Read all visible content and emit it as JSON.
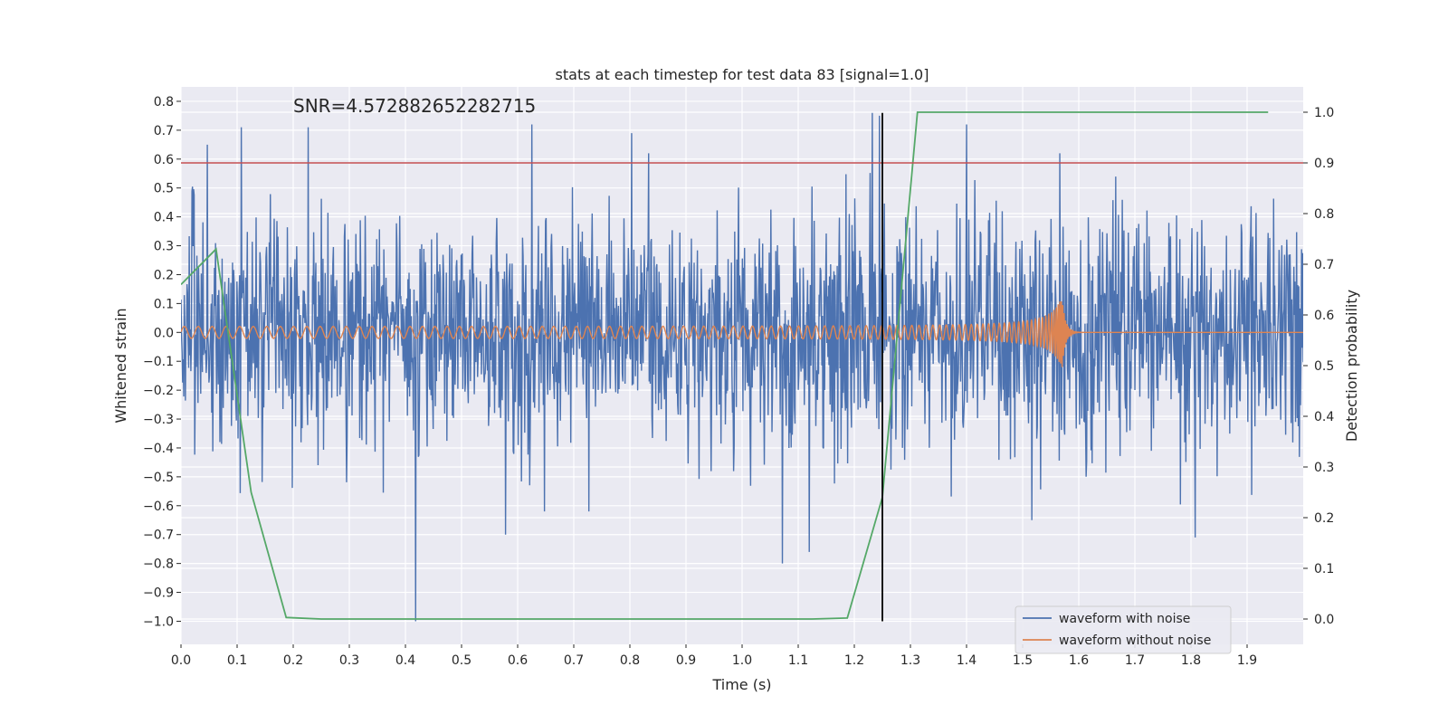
{
  "chart_data": {
    "type": "line",
    "title": "stats at each timestep for test data 83 [signal=1.0]",
    "xlabel": "Time (s)",
    "ylabel": "Whitened strain",
    "y2label": "Detection probability",
    "xlim": [
      0.0,
      2.0
    ],
    "ylim": [
      -1.08,
      0.85
    ],
    "y2lim": [
      -0.05,
      1.05
    ],
    "x_ticks": [
      0.0,
      0.1,
      0.2,
      0.3,
      0.4,
      0.5,
      0.6,
      0.7,
      0.8,
      0.9,
      1.0,
      1.1,
      1.2,
      1.3,
      1.4,
      1.5,
      1.6,
      1.7,
      1.8,
      1.9
    ],
    "x_tick_labels": [
      "0.0",
      "0.1",
      "0.2",
      "0.3",
      "0.4",
      "0.5",
      "0.6",
      "0.7",
      "0.8",
      "0.9",
      "1.0",
      "1.1",
      "1.2",
      "1.3",
      "1.4",
      "1.5",
      "1.6",
      "1.7",
      "1.8",
      "1.9"
    ],
    "y_ticks": [
      0.8,
      0.7,
      0.6,
      0.5,
      0.4,
      0.3,
      0.2,
      0.1,
      0.0,
      -0.1,
      -0.2,
      -0.3,
      -0.4,
      -0.5,
      -0.6,
      -0.7,
      -0.8,
      -0.9,
      -1.0
    ],
    "y_tick_labels": [
      "0.8",
      "0.7",
      "0.6",
      "0.5",
      "0.4",
      "0.3",
      "0.2",
      "0.1",
      "0.0",
      "−0.1",
      "−0.2",
      "−0.3",
      "−0.4",
      "−0.5",
      "−0.6",
      "−0.7",
      "−0.8",
      "−0.9",
      "−1.0"
    ],
    "y2_ticks": [
      1.0,
      0.9,
      0.8,
      0.7,
      0.6,
      0.5,
      0.4,
      0.3,
      0.2,
      0.1,
      0.0
    ],
    "y2_tick_labels": [
      "1.0",
      "0.9",
      "0.8",
      "0.7",
      "0.6",
      "0.5",
      "0.4",
      "0.3",
      "0.2",
      "0.1",
      "0.0"
    ],
    "annotation": "SNR=4.572882652282715",
    "annotation_at": {
      "x": 0.2,
      "y": 0.76
    },
    "threshold_line": {
      "axis": "y2",
      "value": 0.9,
      "color": "#c44e52"
    },
    "marker_line": {
      "x": 1.25,
      "y_from": -1.0,
      "y_to": 0.76,
      "color": "#000000"
    },
    "series": [
      {
        "name": "waveform with noise",
        "color": "#4c72b0",
        "axis": "y",
        "kind": "noise",
        "n_points": 2048,
        "x_range": [
          0.0,
          2.0
        ],
        "sigma": 0.2,
        "spikes": [
          {
            "x": 0.047,
            "y": 0.65
          },
          {
            "x": 0.107,
            "y": 0.71
          },
          {
            "x": 0.227,
            "y": 0.71
          },
          {
            "x": 0.418,
            "y": -1.0
          },
          {
            "x": 0.625,
            "y": 0.72
          },
          {
            "x": 0.803,
            "y": 0.69
          },
          {
            "x": 0.578,
            "y": -0.7
          },
          {
            "x": 1.072,
            "y": -0.8
          },
          {
            "x": 1.232,
            "y": 0.76
          },
          {
            "x": 1.245,
            "y": 0.75
          },
          {
            "x": 1.4,
            "y": 0.72
          },
          {
            "x": 1.808,
            "y": -0.71
          },
          {
            "x": 1.516,
            "y": -0.65
          },
          {
            "x": 1.12,
            "y": -0.76
          }
        ]
      },
      {
        "name": "waveform without noise",
        "color": "#dd8452",
        "axis": "y",
        "kind": "chirp",
        "x_range": [
          0.0,
          2.0
        ],
        "merger_x": 1.57,
        "amp_start": 0.02,
        "amp_peak": 0.13,
        "freq_start_hz": 40
      },
      {
        "name": "Detection probability",
        "color": "#55a868",
        "axis": "y2",
        "kind": "line",
        "x": [
          0.0,
          0.0625,
          0.125,
          0.1875,
          0.25,
          1.125,
          1.1875,
          1.25,
          1.3125,
          1.9375
        ],
        "values": [
          0.66,
          0.73,
          0.25,
          0.003,
          0.0,
          0.0,
          0.002,
          0.24,
          1.0,
          1.0
        ]
      }
    ],
    "legend": {
      "location": "lower-right",
      "entries": [
        {
          "label": "waveform with noise",
          "color": "#4c72b0"
        },
        {
          "label": "waveform without noise",
          "color": "#dd8452"
        }
      ]
    }
  }
}
